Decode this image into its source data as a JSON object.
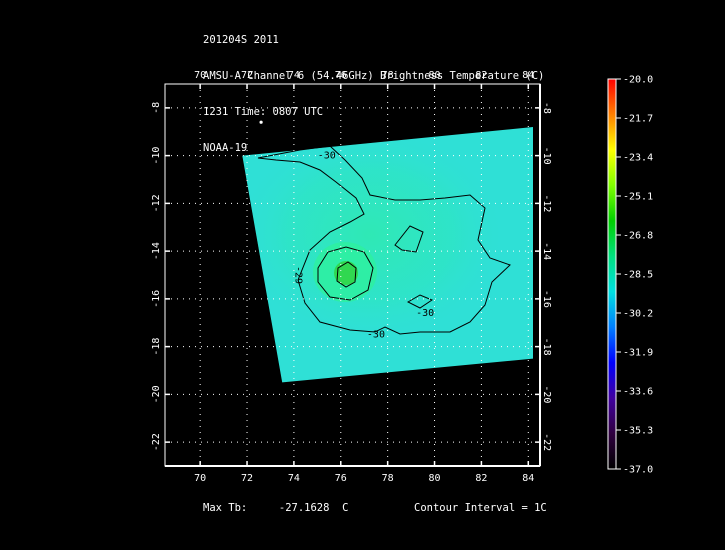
{
  "header": {
    "line1": "201204S 2011",
    "line2": "AMSU-A Channel 6 (54.46GHz) Brightness Temperature (C)",
    "line3": "1231 Time: 0807 UTC",
    "line4": "NOAA-19"
  },
  "footer": {
    "max_tb_label": "Max Tb:",
    "max_tb_value": "-27.1628",
    "max_tb_unit": "C",
    "contour_interval": "Contour Interval = 1C"
  },
  "colors": {
    "background": "#000000",
    "field": "#2fe0d6",
    "field_warm": "#33e6a0",
    "contour": "#000000",
    "frame": "#ffffff",
    "grid": "#ffffff"
  },
  "map": {
    "lon_range": [
      68.5,
      84.5
    ],
    "lat_range": [
      -23,
      -7
    ],
    "lon_ticks": [
      "70",
      "72",
      "74",
      "76",
      "78",
      "80",
      "82",
      "84"
    ],
    "lon_tick_values": [
      70,
      72,
      74,
      76,
      78,
      80,
      82,
      84
    ],
    "lat_ticks": [
      "-8",
      "-10",
      "-12",
      "-14",
      "-16",
      "-18",
      "-20",
      "-22"
    ],
    "lat_tick_values": [
      -8,
      -10,
      -12,
      -14,
      -16,
      -18,
      -20,
      -22
    ],
    "swath_corners": [
      [
        71.8,
        -10.0
      ],
      [
        84.2,
        -8.8
      ],
      [
        84.2,
        -18.5
      ],
      [
        73.5,
        -19.5
      ]
    ],
    "center": [
      76.1,
      -15.0
    ],
    "contour_labels": [
      {
        "text": "-30",
        "lon": 75.4,
        "lat": -10.0
      },
      {
        "text": "-29",
        "lon": 74.2,
        "lat": -15.0
      },
      {
        "text": "-30",
        "lon": 79.6,
        "lat": -16.6
      },
      {
        "text": "-30",
        "lon": 77.5,
        "lat": -17.5
      }
    ],
    "island_marker": [
      72.6,
      -8.6
    ]
  },
  "colorbar": {
    "labels": [
      "-20.0",
      "-21.7",
      "-23.4",
      "-25.1",
      "-26.8",
      "-28.5",
      "-30.2",
      "-31.9",
      "-33.6",
      "-35.3",
      "-37.0"
    ],
    "values": [
      -20.0,
      -21.7,
      -23.4,
      -25.1,
      -26.8,
      -28.5,
      -30.2,
      -31.9,
      -33.6,
      -35.3,
      -37.0
    ],
    "range": [
      -37.0,
      -20.0
    ],
    "gradient_colors": [
      "#ff0000",
      "#ff8000",
      "#ffff00",
      "#80ff00",
      "#00d000",
      "#00e080",
      "#00e0e0",
      "#0080ff",
      "#0000ff",
      "#4000a0",
      "#300040",
      "#000000"
    ]
  }
}
